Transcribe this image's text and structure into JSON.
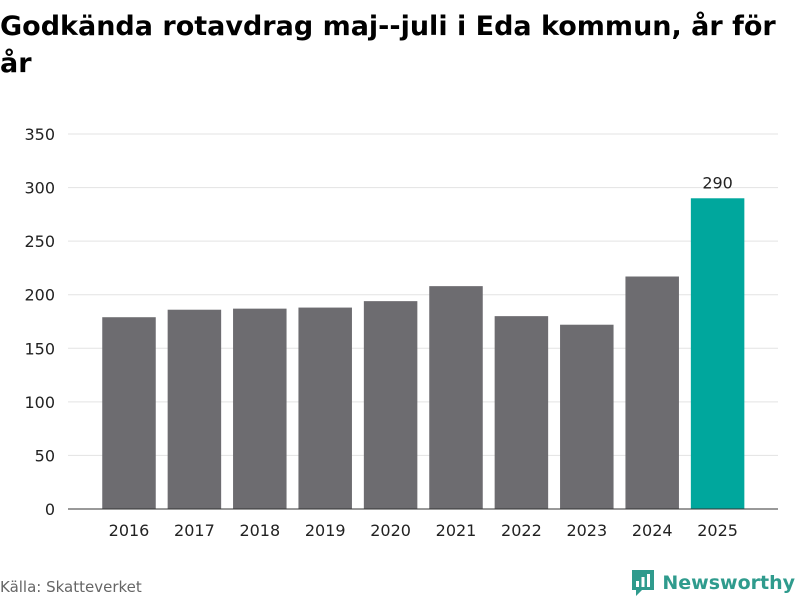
{
  "header": {
    "title": "Godkända rotavdrag maj--juli i Eda kommun, år för år"
  },
  "chart_data": {
    "type": "bar",
    "categories": [
      "2016",
      "2017",
      "2018",
      "2019",
      "2020",
      "2021",
      "2022",
      "2023",
      "2024",
      "2025"
    ],
    "values": [
      179,
      186,
      187,
      188,
      194,
      208,
      180,
      172,
      217,
      290
    ],
    "ylim": [
      0,
      350
    ],
    "yticks": [
      0,
      50,
      100,
      150,
      200,
      250,
      300,
      350
    ],
    "grid": true,
    "data_labels": [
      null,
      null,
      null,
      null,
      null,
      null,
      null,
      null,
      null,
      "290"
    ],
    "bar_color": "#6d6c70",
    "highlight_color": "#00a79d",
    "highlight_index": 9
  },
  "footer": {
    "source": "Källa: Skatteverket",
    "brand": "Newsworthy",
    "brand_icon": "newsworthy-logo-icon",
    "brand_color": "#2f9b8d"
  }
}
